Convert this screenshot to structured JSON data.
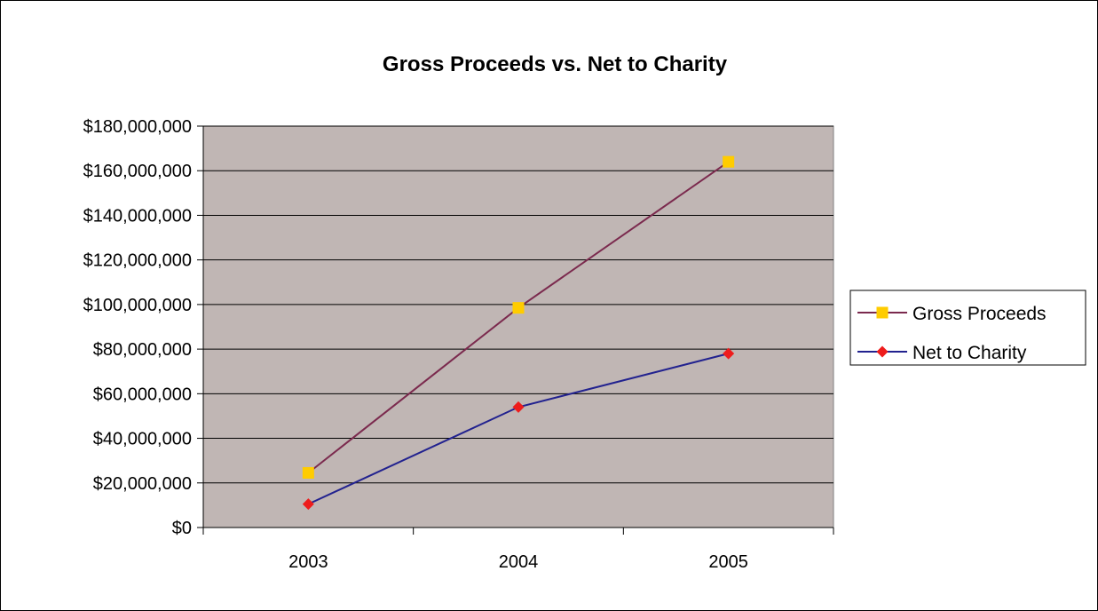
{
  "chart_data": {
    "type": "line",
    "title": "Gross Proceeds vs. Net to Charity",
    "xlabel": "",
    "ylabel": "",
    "categories": [
      "2003",
      "2004",
      "2005"
    ],
    "ylim": [
      0,
      180000000
    ],
    "yticks": [
      0,
      20000000,
      40000000,
      60000000,
      80000000,
      100000000,
      120000000,
      140000000,
      160000000,
      180000000
    ],
    "ytick_labels": [
      "$0",
      "$20,000,000",
      "$40,000,000",
      "$60,000,000",
      "$80,000,000",
      "$100,000,000",
      "$120,000,000",
      "$140,000,000",
      "$160,000,000",
      "$180,000,000"
    ],
    "grid": true,
    "legend_position": "right",
    "plot_background": "#c0b6b4",
    "series": [
      {
        "name": "Gross Proceeds",
        "values": [
          24500000,
          98500000,
          164000000
        ],
        "line_color": "#7b2a4e",
        "marker": "square",
        "marker_color": "#ffcc00"
      },
      {
        "name": "Net to Charity",
        "values": [
          10500000,
          54000000,
          78000000
        ],
        "line_color": "#22228f",
        "marker": "diamond",
        "marker_color": "#ee1c1c"
      }
    ]
  }
}
